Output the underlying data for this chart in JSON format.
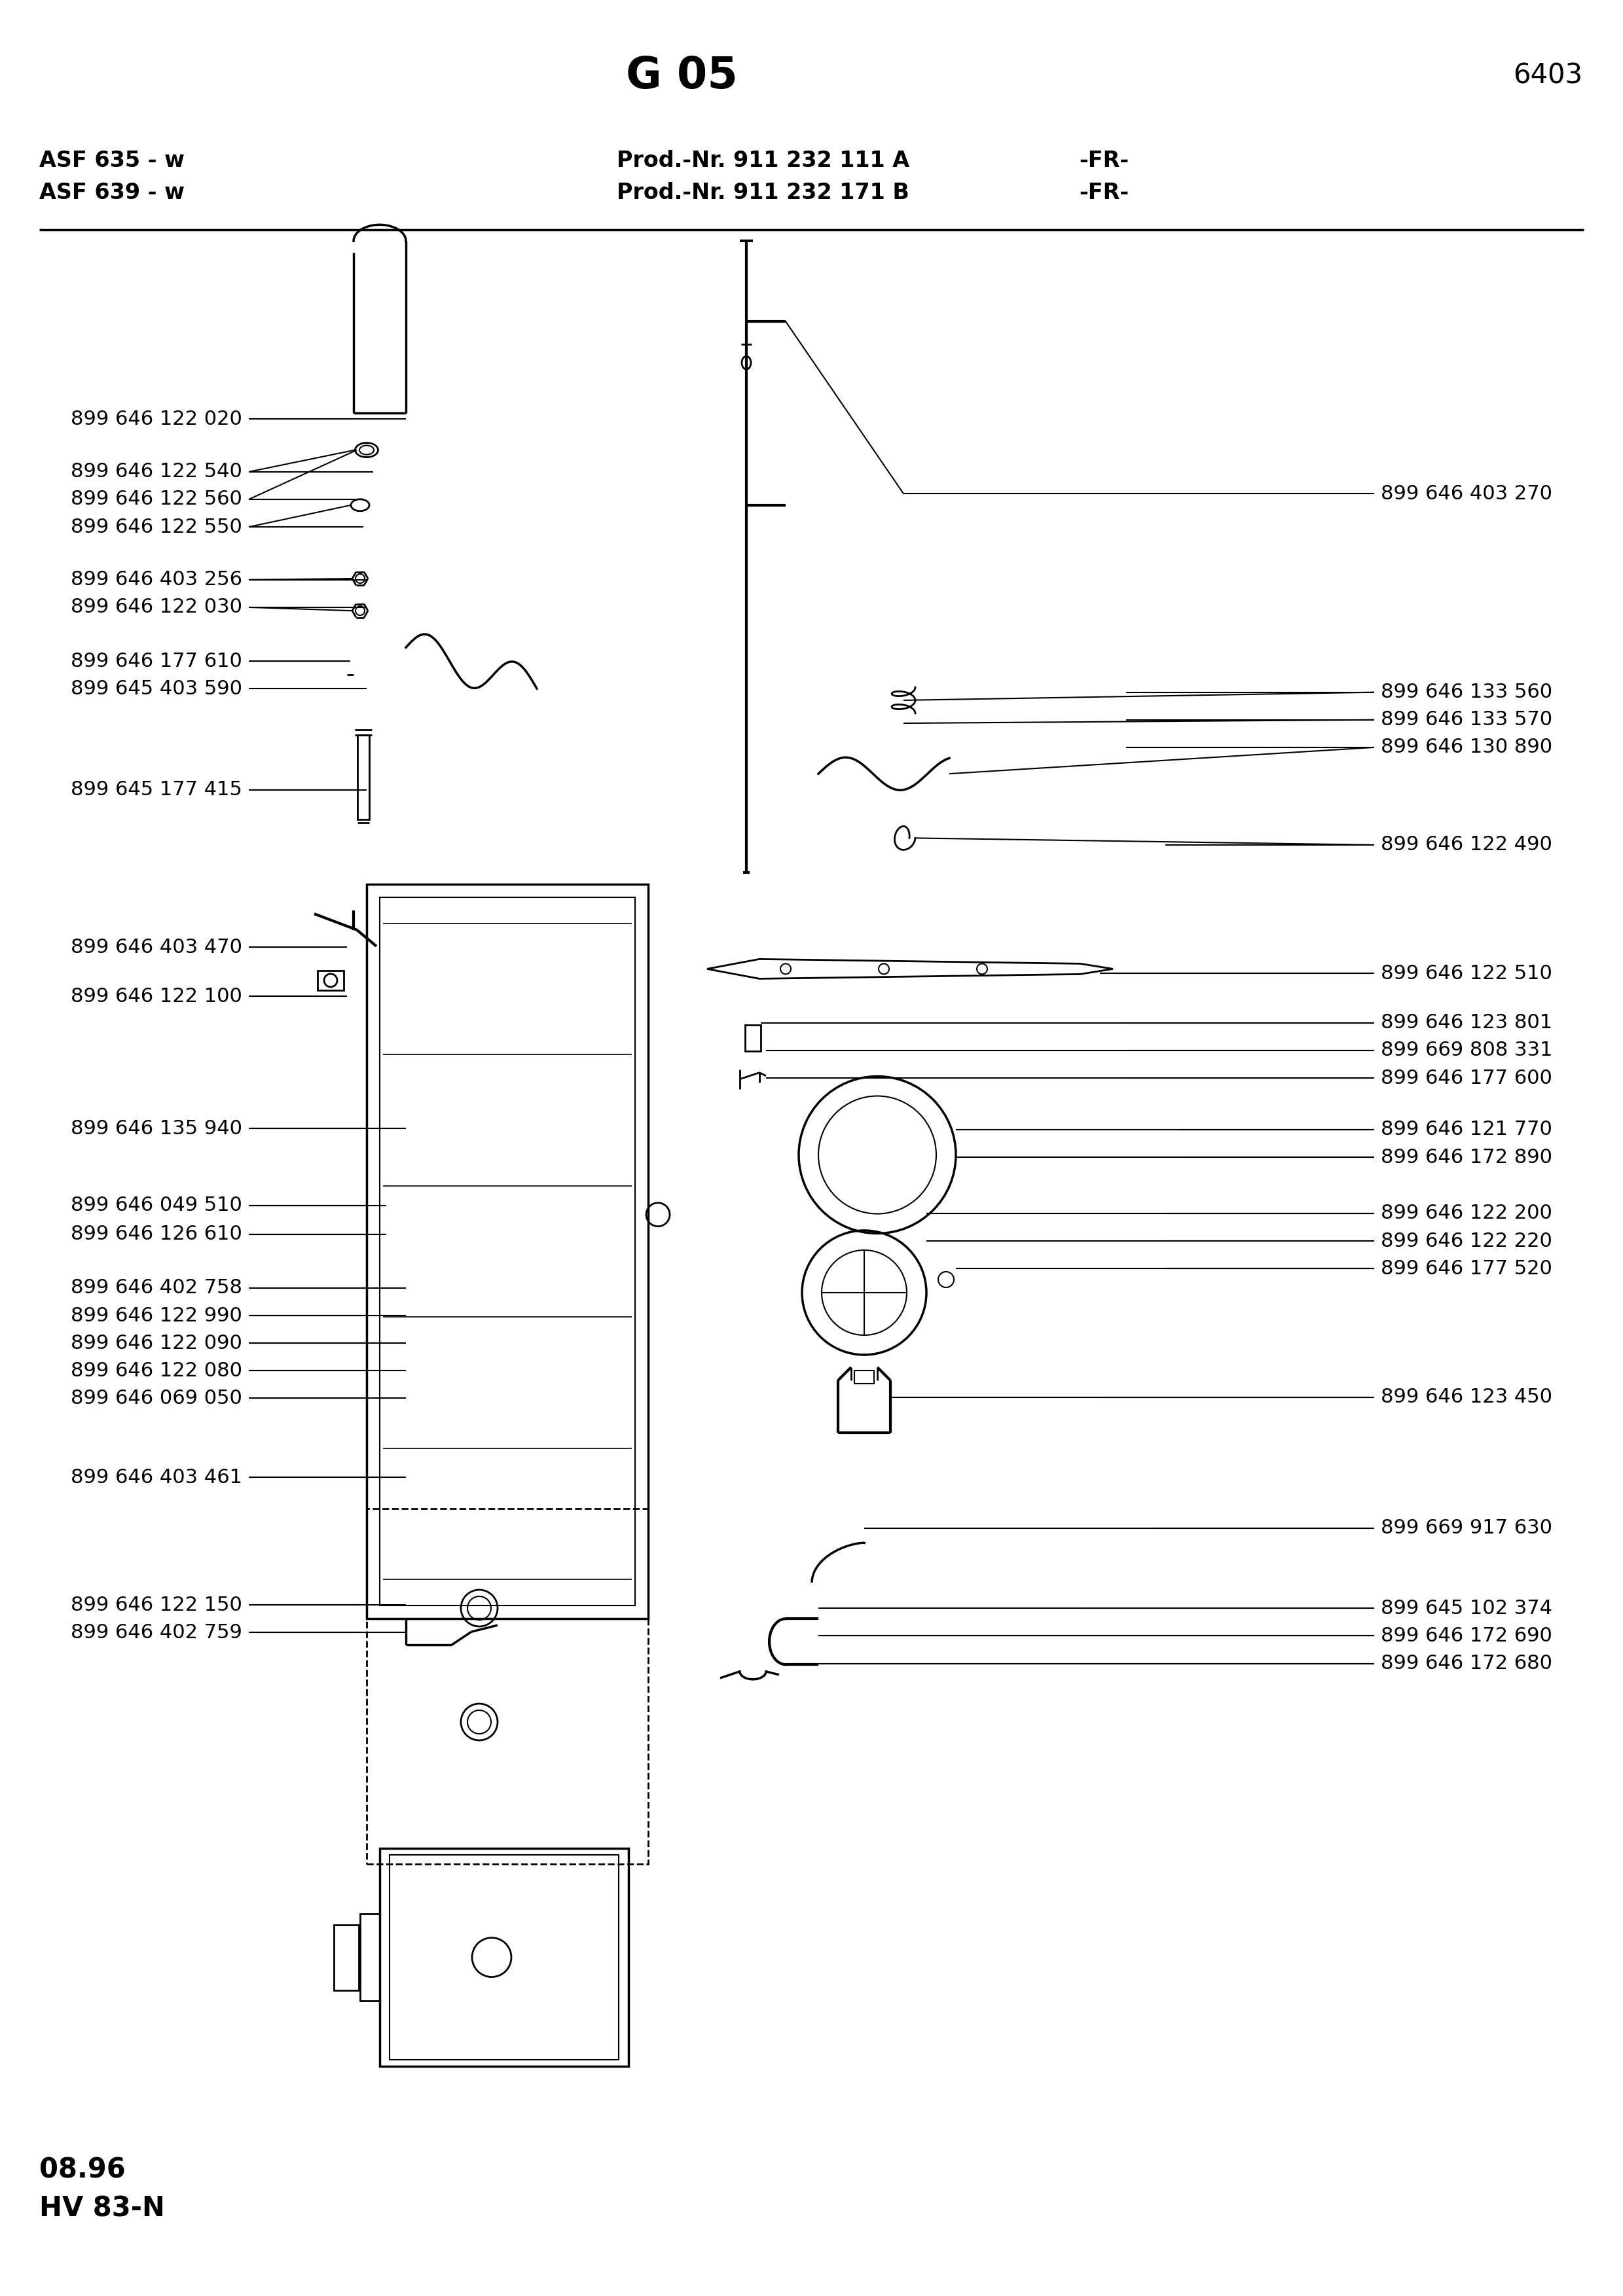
{
  "title": "G 05",
  "page_num": "6403",
  "model_line1": "ASF 635 - w",
  "model_line2": "ASF 639 - w",
  "prod_line1": "Prod.-Nr. 911 232 111 A",
  "prod_line2": "Prod.-Nr. 911 232 171 B",
  "region1": "-FR-",
  "region2": "-FR-",
  "footer1": "08.96",
  "footer2": "HV 83-N",
  "bg_color": "#ffffff",
  "text_color": "#000000",
  "line_color": "#000000",
  "left_labels": [
    {
      "text": "899 646 122 020",
      "yf": 0.8175
    },
    {
      "text": "899 646 122 540",
      "yf": 0.7945
    },
    {
      "text": "899 646 122 560",
      "yf": 0.7825
    },
    {
      "text": "899 646 122 550",
      "yf": 0.7705
    },
    {
      "text": "899 646 403 256",
      "yf": 0.7475
    },
    {
      "text": "899 646 122 030",
      "yf": 0.7355
    },
    {
      "text": "899 646 177 610",
      "yf": 0.712
    },
    {
      "text": "899 645 403 590",
      "yf": 0.7
    },
    {
      "text": "899 645 177 415",
      "yf": 0.656
    },
    {
      "text": "899 646 403 470",
      "yf": 0.5875
    },
    {
      "text": "899 646 122 100",
      "yf": 0.566
    },
    {
      "text": "899 646 135 940",
      "yf": 0.5085
    },
    {
      "text": "899 646 049 510",
      "yf": 0.475
    },
    {
      "text": "899 646 126 610",
      "yf": 0.4625
    },
    {
      "text": "899 646 402 758",
      "yf": 0.439
    },
    {
      "text": "899 646 122 990",
      "yf": 0.427
    },
    {
      "text": "899 646 122 090",
      "yf": 0.415
    },
    {
      "text": "899 646 122 080",
      "yf": 0.403
    },
    {
      "text": "899 646 069 050",
      "yf": 0.391
    },
    {
      "text": "899 646 403 461",
      "yf": 0.3565
    },
    {
      "text": "899 646 122 150",
      "yf": 0.301
    },
    {
      "text": "899 646 402 759",
      "yf": 0.289
    }
  ],
  "right_labels": [
    {
      "text": "899 646 403 270",
      "yf": 0.785
    },
    {
      "text": "899 646 133 560",
      "yf": 0.6985
    },
    {
      "text": "899 646 133 570",
      "yf": 0.6865
    },
    {
      "text": "899 646 130 890",
      "yf": 0.6745
    },
    {
      "text": "899 646 122 490",
      "yf": 0.632
    },
    {
      "text": "899 646 122 510",
      "yf": 0.576
    },
    {
      "text": "899 646 123 801",
      "yf": 0.5545
    },
    {
      "text": "899 669 808 331",
      "yf": 0.5425
    },
    {
      "text": "899 646 177 600",
      "yf": 0.5305
    },
    {
      "text": "899 646 121 770",
      "yf": 0.508
    },
    {
      "text": "899 646 172 890",
      "yf": 0.496
    },
    {
      "text": "899 646 122 200",
      "yf": 0.4715
    },
    {
      "text": "899 646 122 220",
      "yf": 0.4595
    },
    {
      "text": "899 646 177 520",
      "yf": 0.4475
    },
    {
      "text": "899 646 123 450",
      "yf": 0.3915
    },
    {
      "text": "899 669 917 630",
      "yf": 0.3345
    },
    {
      "text": "899 645 102 374",
      "yf": 0.2995
    },
    {
      "text": "899 646 172 690",
      "yf": 0.2875
    },
    {
      "text": "899 646 172 680",
      "yf": 0.2755
    }
  ]
}
